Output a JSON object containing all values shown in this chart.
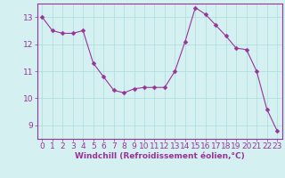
{
  "x": [
    0,
    1,
    2,
    3,
    4,
    5,
    6,
    7,
    8,
    9,
    10,
    11,
    12,
    13,
    14,
    15,
    16,
    17,
    18,
    19,
    20,
    21,
    22,
    23
  ],
  "y": [
    13.0,
    12.5,
    12.4,
    12.4,
    12.5,
    11.3,
    10.8,
    10.3,
    10.2,
    10.35,
    10.4,
    10.4,
    10.4,
    11.0,
    12.1,
    13.35,
    13.1,
    12.7,
    12.3,
    11.85,
    11.8,
    11.0,
    9.6,
    8.8
  ],
  "line_color": "#993399",
  "marker_color": "#993399",
  "bg_color": "#d4f0f0",
  "grid_color": "#aadddd",
  "axis_color": "#993399",
  "tick_color": "#993399",
  "xlabel": "Windchill (Refroidissement éolien,°C)",
  "ylim": [
    8.5,
    13.5
  ],
  "xlim": [
    -0.5,
    23.5
  ],
  "yticks": [
    9,
    10,
    11,
    12,
    13
  ],
  "xticks": [
    0,
    1,
    2,
    3,
    4,
    5,
    6,
    7,
    8,
    9,
    10,
    11,
    12,
    13,
    14,
    15,
    16,
    17,
    18,
    19,
    20,
    21,
    22,
    23
  ],
  "xlabel_fontsize": 6.5,
  "tick_fontsize": 6.5,
  "marker_size": 2.5,
  "linewidth": 0.8
}
